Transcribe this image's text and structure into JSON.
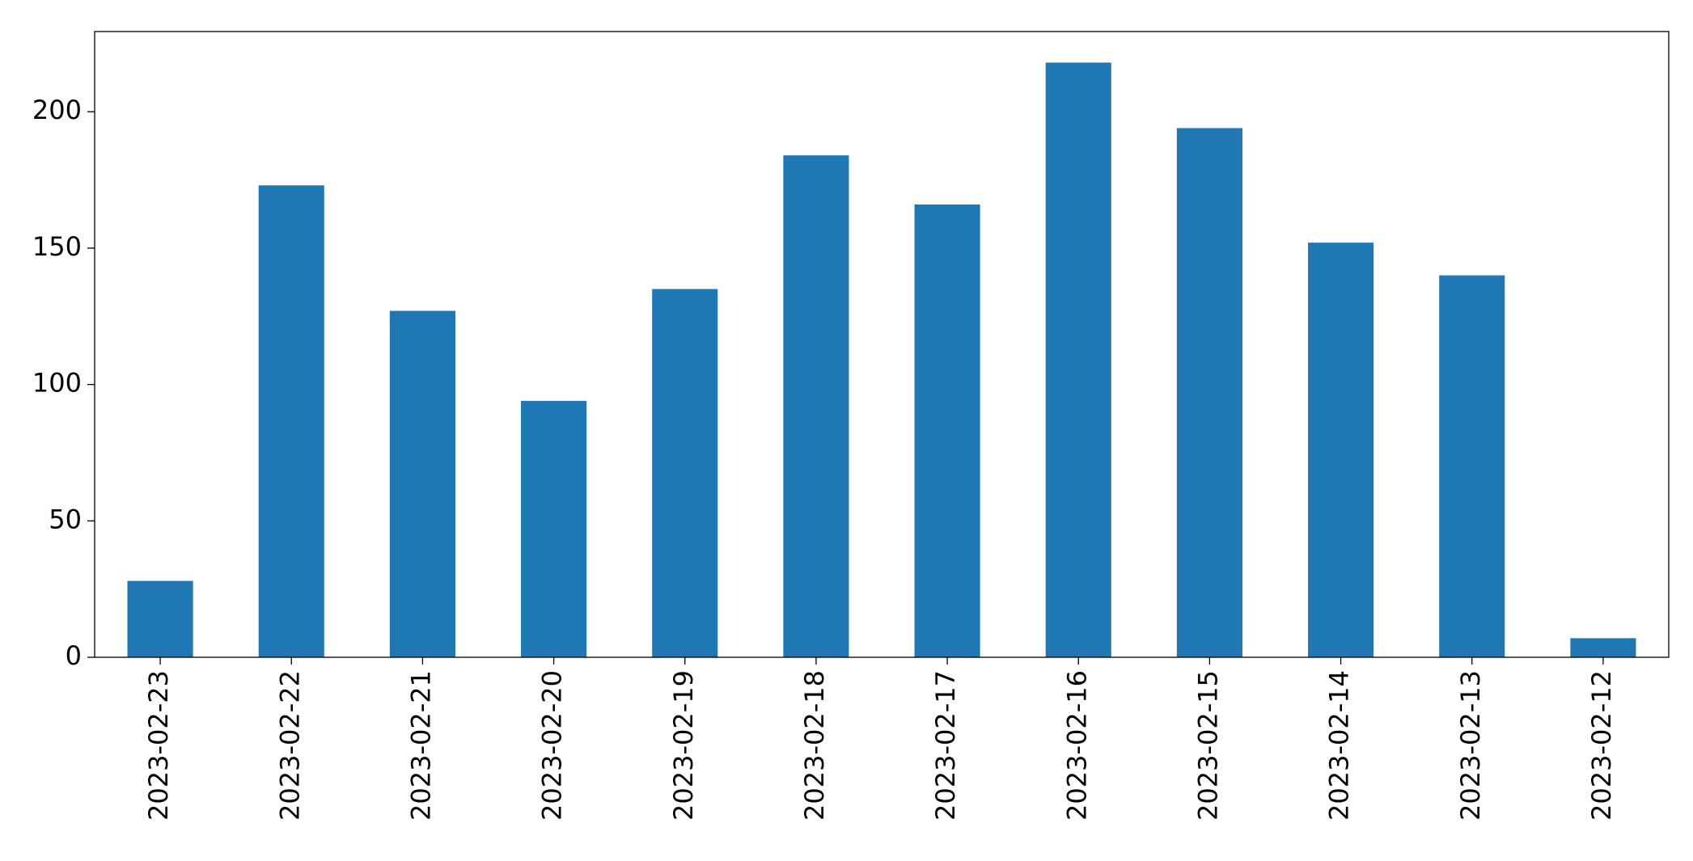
{
  "chart_data": {
    "type": "bar",
    "categories": [
      "2023-02-23",
      "2023-02-22",
      "2023-02-21",
      "2023-02-20",
      "2023-02-19",
      "2023-02-18",
      "2023-02-17",
      "2023-02-16",
      "2023-02-15",
      "2023-02-14",
      "2023-02-13",
      "2023-02-12"
    ],
    "values": [
      28,
      173,
      127,
      94,
      135,
      184,
      166,
      218,
      194,
      152,
      140,
      7
    ],
    "color": "#1f77b4",
    "ylim": [
      0,
      229.4
    ],
    "yticks": [
      0,
      50,
      100,
      150,
      200
    ],
    "grid": false
  }
}
